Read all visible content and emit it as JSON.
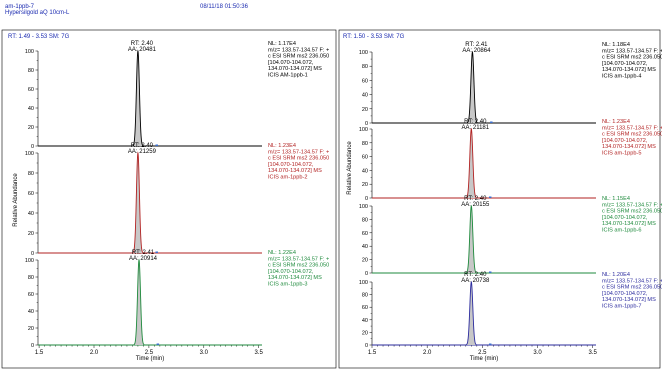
{
  "header": {
    "filename": "am-1ppb-7",
    "method": "Hypersilgold aQ 10cm-L",
    "datetime": "08/11/18 01:50:36"
  },
  "panels": [
    {
      "range_text": "RT: 1.49 - 3.53",
      "sm_text": "SM: 7G",
      "xlabel": "Time (min)",
      "ylabel": "Relative Abundance",
      "xticks": [
        1.5,
        2.0,
        2.5,
        3.0,
        3.5
      ]
    },
    {
      "range_text": "RT: 1.50 - 3.53",
      "sm_text": "SM: 7G",
      "xlabel": "Time (min)",
      "ylabel": "Relative Abundance",
      "xticks": [
        1.5,
        2.0,
        2.5,
        3.0,
        3.5
      ]
    }
  ],
  "chart_data": [
    {
      "type": "line",
      "panel": 0,
      "color": "#000000",
      "xlim": [
        1.49,
        3.53
      ],
      "ylim": [
        0,
        100
      ],
      "yticks": [
        0,
        20,
        40,
        60,
        80,
        100
      ],
      "peak_rt": 2.4,
      "peak_width": 0.032,
      "rt_label": "RT: 2.40",
      "aa_label": "AA: 20481",
      "info": [
        "NL: 1.17E4",
        "m/z= 133.57-134.57 F: +",
        "c ESI SRM ms2 236.050",
        "[104.070-104.072,",
        "134.070-134.072]  MS",
        "ICIS AM-1ppb-1"
      ]
    },
    {
      "type": "line",
      "panel": 0,
      "color": "#b22222",
      "xlim": [
        1.49,
        3.53
      ],
      "ylim": [
        0,
        100
      ],
      "yticks": [
        0,
        20,
        40,
        60,
        80,
        100
      ],
      "peak_rt": 2.4,
      "peak_width": 0.032,
      "rt_label": "RT: 2.40",
      "aa_label": "AA: 21259",
      "info": [
        "NL: 1.23E4",
        "m/z= 133.57-134.57 F: +",
        "c ESI SRM ms2 236.050",
        "[104.070-104.072,",
        "134.070-134.072]  MS",
        "ICIS am-1ppb-2"
      ]
    },
    {
      "type": "line",
      "panel": 0,
      "color": "#1e8a3c",
      "xlim": [
        1.49,
        3.53
      ],
      "ylim": [
        0,
        100
      ],
      "yticks": [
        0,
        20,
        40,
        60,
        80,
        100
      ],
      "peak_rt": 2.41,
      "peak_width": 0.032,
      "rt_label": "RT: 2.41",
      "aa_label": "AA: 20914",
      "info": [
        "NL: 1.22E4",
        "m/z= 133.57-134.57 F: +",
        "c ESI SRM ms2 236.050",
        "[104.070-104.072,",
        "134.070-134.072]  MS",
        "ICIS am-1ppb-3"
      ]
    },
    {
      "type": "line",
      "panel": 1,
      "color": "#000000",
      "xlim": [
        1.5,
        3.53
      ],
      "ylim": [
        0,
        100
      ],
      "yticks": [
        0,
        20,
        40,
        60,
        80,
        100
      ],
      "peak_rt": 2.41,
      "peak_width": 0.032,
      "rt_label": "RT: 2.41",
      "aa_label": "AA: 20864",
      "info": [
        "NL: 1.18E4",
        "m/z= 133.57-134.57 F: +",
        "c ESI SRM ms2 236.050",
        "[104.070-104.072,",
        "134.070-134.072]  MS",
        "ICIS am-1ppb-4"
      ]
    },
    {
      "type": "line",
      "panel": 1,
      "color": "#b22222",
      "xlim": [
        1.5,
        3.53
      ],
      "ylim": [
        0,
        100
      ],
      "yticks": [
        0,
        20,
        40,
        60,
        80,
        100
      ],
      "peak_rt": 2.4,
      "peak_width": 0.032,
      "rt_label": "RT: 2.40",
      "aa_label": "AA: 21181",
      "info": [
        "NL: 1.23E4",
        "m/z= 133.57-134.57 F: +",
        "c ESI SRM ms2 236.050",
        "[104.070-104.072,",
        "134.070-134.072]  MS",
        "ICIS am-1ppb-5"
      ]
    },
    {
      "type": "line",
      "panel": 1,
      "color": "#1e8a3c",
      "xlim": [
        1.5,
        3.53
      ],
      "ylim": [
        0,
        100
      ],
      "yticks": [
        0,
        20,
        40,
        60,
        80,
        100
      ],
      "peak_rt": 2.4,
      "peak_width": 0.032,
      "rt_label": "RT: 2.40",
      "aa_label": "AA: 20155",
      "info": [
        "NL: 1.15E4",
        "m/z= 133.57-134.57 F: +",
        "c ESI SRM ms2 236.050",
        "[104.070-104.072,",
        "134.070-134.072]  MS",
        "ICIS am-1ppb-6"
      ]
    },
    {
      "type": "line",
      "panel": 1,
      "color": "#2b2b9e",
      "xlim": [
        1.5,
        3.53
      ],
      "ylim": [
        0,
        100
      ],
      "yticks": [
        0,
        20,
        40,
        60,
        80,
        100
      ],
      "peak_rt": 2.4,
      "peak_width": 0.032,
      "rt_label": "RT: 2.40",
      "aa_label": "AA: 20738",
      "info": [
        "NL: 1.20E4",
        "m/z= 133.57-134.57 F: +",
        "c ESI SRM ms2 236.050",
        "[104.070-104.072,",
        "134.070-134.072]  MS",
        "ICIS am-1ppb-7"
      ]
    }
  ]
}
